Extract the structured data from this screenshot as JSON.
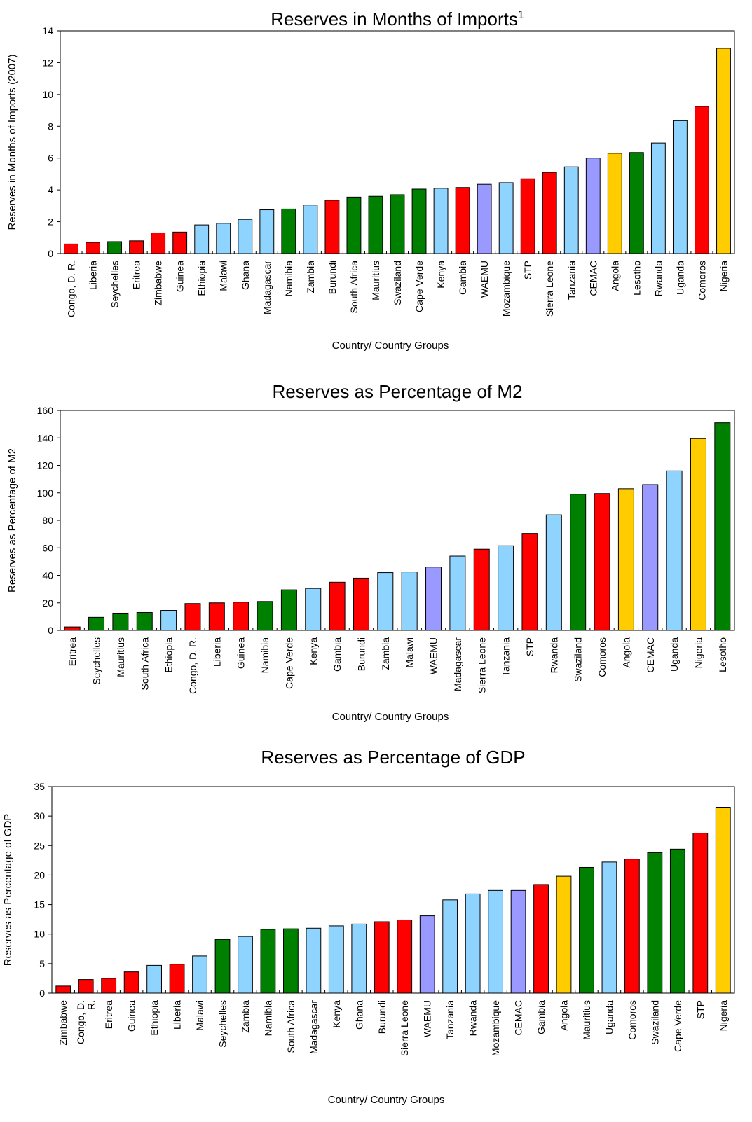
{
  "colors": {
    "red": "#ff0000",
    "lightblue": "#8fd3ff",
    "green": "#008000",
    "purple": "#9999ff",
    "yellow": "#ffcc00"
  },
  "chart_data": [
    {
      "type": "bar",
      "title": "Reserves in Months of Imports",
      "title_superscript": "1",
      "xlabel": "Country/ Country Groups",
      "ylabel": "Reserves in Months of Imports (2007)",
      "ylim": [
        0,
        14
      ],
      "yticks": [
        "0",
        "2",
        "4",
        "6",
        "8",
        "10",
        "12",
        "14"
      ],
      "grid": false,
      "categories": [
        "Congo, D. R.",
        "Liberia",
        "Seychelles",
        "Eritrea",
        "Zimbabwe",
        "Guinea",
        "Ethiopia",
        "Malawi",
        "Ghana",
        "Madagascar",
        "Namibia",
        "Zambia",
        "Burundi",
        "South Africa",
        "Mauritius",
        "Swaziland",
        "Cape Verde",
        "Kenya",
        "Gambia",
        "WAEMU",
        "Mozambique",
        "STP",
        "Sierra Leone",
        "Tanzania",
        "CEMAC",
        "Angola",
        "Lesotho",
        "Rwanda",
        "Uganda",
        "Comoros",
        "Nigeria"
      ],
      "values": [
        0.6,
        0.7,
        0.75,
        0.8,
        1.3,
        1.35,
        1.8,
        1.9,
        2.15,
        2.75,
        2.8,
        3.05,
        3.35,
        3.55,
        3.6,
        3.7,
        4.05,
        4.1,
        4.15,
        4.35,
        4.45,
        4.7,
        5.1,
        5.45,
        6.0,
        6.3,
        6.35,
        6.95,
        8.35,
        9.25,
        12.9
      ],
      "bar_colors": [
        "red",
        "red",
        "green",
        "red",
        "red",
        "red",
        "lightblue",
        "lightblue",
        "lightblue",
        "lightblue",
        "green",
        "lightblue",
        "red",
        "green",
        "green",
        "green",
        "green",
        "lightblue",
        "red",
        "purple",
        "lightblue",
        "red",
        "red",
        "lightblue",
        "purple",
        "yellow",
        "green",
        "lightblue",
        "lightblue",
        "red",
        "yellow"
      ]
    },
    {
      "type": "bar",
      "title": "Reserves as Percentage of M2",
      "xlabel": "Country/ Country Groups",
      "ylabel": "Reserves as Percentage of M2",
      "ylim": [
        0,
        160
      ],
      "yticks": [
        "0",
        "20",
        "40",
        "60",
        "80",
        "100",
        "120",
        "140",
        "160"
      ],
      "grid": false,
      "categories": [
        "Eritrea",
        "Seychelles",
        "Mauritius",
        "South Africa",
        "Ethiopia",
        "Congo, D. R.",
        "Liberia",
        "Guinea",
        "Namibia",
        "Cape Verde",
        "Kenya",
        "Gambia",
        "Burundi",
        "Zambia",
        "Malawi",
        "WAEMU",
        "Madagascar",
        "Sierra Leone",
        "Tanzania",
        "STP",
        "Rwanda",
        "Swaziland",
        "Comoros",
        "Angola",
        "CEMAC",
        "Uganda",
        "Nigeria",
        "Lesotho"
      ],
      "values": [
        2.5,
        9.5,
        12.5,
        13.0,
        14.5,
        19.5,
        20.0,
        20.5,
        21.0,
        29.5,
        30.5,
        35.0,
        38.0,
        42.0,
        42.5,
        46.0,
        54.0,
        59.0,
        61.5,
        70.5,
        84.0,
        99.0,
        99.5,
        103.0,
        106.0,
        116.0,
        139.5,
        151.0
      ],
      "bar_colors": [
        "red",
        "green",
        "green",
        "green",
        "lightblue",
        "red",
        "red",
        "red",
        "green",
        "green",
        "lightblue",
        "red",
        "red",
        "lightblue",
        "lightblue",
        "purple",
        "lightblue",
        "red",
        "lightblue",
        "red",
        "lightblue",
        "green",
        "red",
        "yellow",
        "purple",
        "lightblue",
        "yellow",
        "green"
      ]
    },
    {
      "type": "bar",
      "title": "Reserves as Percentage of GDP",
      "xlabel": "Country/ Country Groups",
      "ylabel": "Reserves as Percentage of GDP",
      "ylim": [
        0,
        35
      ],
      "yticks": [
        "0",
        "5",
        "10",
        "15",
        "20",
        "25",
        "30",
        "35"
      ],
      "grid": false,
      "categories": [
        "Zimbabwe",
        "Congo, D. R.",
        "Eritrea",
        "Guinea",
        "Ethiopia",
        "Liberia",
        "Malawi",
        "Seychelles",
        "Zambia",
        "Namibia",
        "South Africa",
        "Madagascar",
        "Kenya",
        "Ghana",
        "Burundi",
        "Sierra Leone",
        "WAEMU",
        "Tanzania",
        "Rwanda",
        "Mozambique",
        "CEMAC",
        "Gambia",
        "Angola",
        "Mauritius",
        "Uganda",
        "Comoros",
        "Swaziland",
        "Cape Verde",
        "STP",
        "Nigeria"
      ],
      "category_lines": [
        [
          "Zimbabwe"
        ],
        [
          "Congo, D.",
          "R."
        ],
        [
          "Eritrea"
        ],
        [
          "Guinea"
        ],
        [
          "Ethiopia"
        ],
        [
          "Liberia"
        ],
        [
          "Malawi"
        ],
        [
          "Seychelles"
        ],
        [
          "Zambia"
        ],
        [
          "Namibia"
        ],
        [
          "South Africa"
        ],
        [
          "Madagascar"
        ],
        [
          "Kenya"
        ],
        [
          "Ghana"
        ],
        [
          "Burundi"
        ],
        [
          "Sierra Leone"
        ],
        [
          "WAEMU"
        ],
        [
          "Tanzania"
        ],
        [
          "Rwanda"
        ],
        [
          "Mozambique"
        ],
        [
          "CEMAC"
        ],
        [
          "Gambia"
        ],
        [
          "Angola"
        ],
        [
          "Mauritius"
        ],
        [
          "Uganda"
        ],
        [
          "Comoros"
        ],
        [
          "Swaziland"
        ],
        [
          "Cape Verde"
        ],
        [
          "STP"
        ],
        [
          "Nigeria"
        ]
      ],
      "values": [
        1.2,
        2.3,
        2.5,
        3.6,
        4.7,
        4.9,
        6.3,
        9.1,
        9.6,
        10.8,
        10.9,
        11.0,
        11.4,
        11.7,
        12.1,
        12.4,
        13.1,
        15.8,
        16.8,
        17.4,
        17.4,
        18.4,
        19.8,
        21.3,
        22.2,
        22.7,
        23.8,
        24.4,
        27.1,
        31.5
      ],
      "bar_colors": [
        "red",
        "red",
        "red",
        "red",
        "lightblue",
        "red",
        "lightblue",
        "green",
        "lightblue",
        "green",
        "green",
        "lightblue",
        "lightblue",
        "lightblue",
        "red",
        "red",
        "purple",
        "lightblue",
        "lightblue",
        "lightblue",
        "purple",
        "red",
        "yellow",
        "green",
        "lightblue",
        "red",
        "green",
        "green",
        "red",
        "yellow"
      ]
    }
  ]
}
